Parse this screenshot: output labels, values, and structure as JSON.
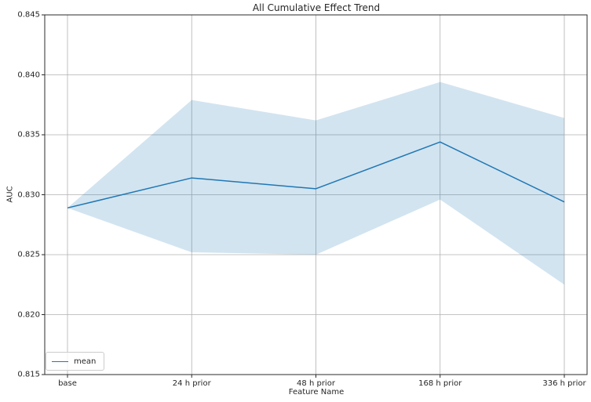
{
  "chart_data": {
    "type": "line",
    "title": "All Cumulative Effect Trend",
    "xlabel": "Feature Name",
    "ylabel": "AUC",
    "categories": [
      "base",
      "24 h prior",
      "48 h prior",
      "168 h prior",
      "336 h prior"
    ],
    "series": [
      {
        "name": "mean",
        "values": [
          0.8289,
          0.8314,
          0.8305,
          0.8344,
          0.8294
        ],
        "color": "#1f77b4",
        "linewidth": 1.5
      }
    ],
    "band": {
      "name": "confidence-band",
      "lower": [
        0.8289,
        0.8252,
        0.825,
        0.8296,
        0.8225
      ],
      "upper": [
        0.8289,
        0.8379,
        0.8362,
        0.8394,
        0.8364
      ],
      "fill": "rgba(31,119,180,0.2)"
    },
    "ylim": [
      0.815,
      0.845
    ],
    "yticks": [
      0.815,
      0.82,
      0.825,
      0.83,
      0.835,
      0.84,
      0.845
    ],
    "ytick_labels": [
      "0.815",
      "0.820",
      "0.825",
      "0.830",
      "0.835",
      "0.840",
      "0.845"
    ],
    "grid": true,
    "legend": {
      "position": "lower left",
      "entries": [
        "mean"
      ]
    },
    "colors": {
      "grid": "#b0b0b0",
      "spine": "#2b2b2b",
      "tick": "#2b2b2b",
      "text": "#262626",
      "background": "#ffffff"
    }
  }
}
